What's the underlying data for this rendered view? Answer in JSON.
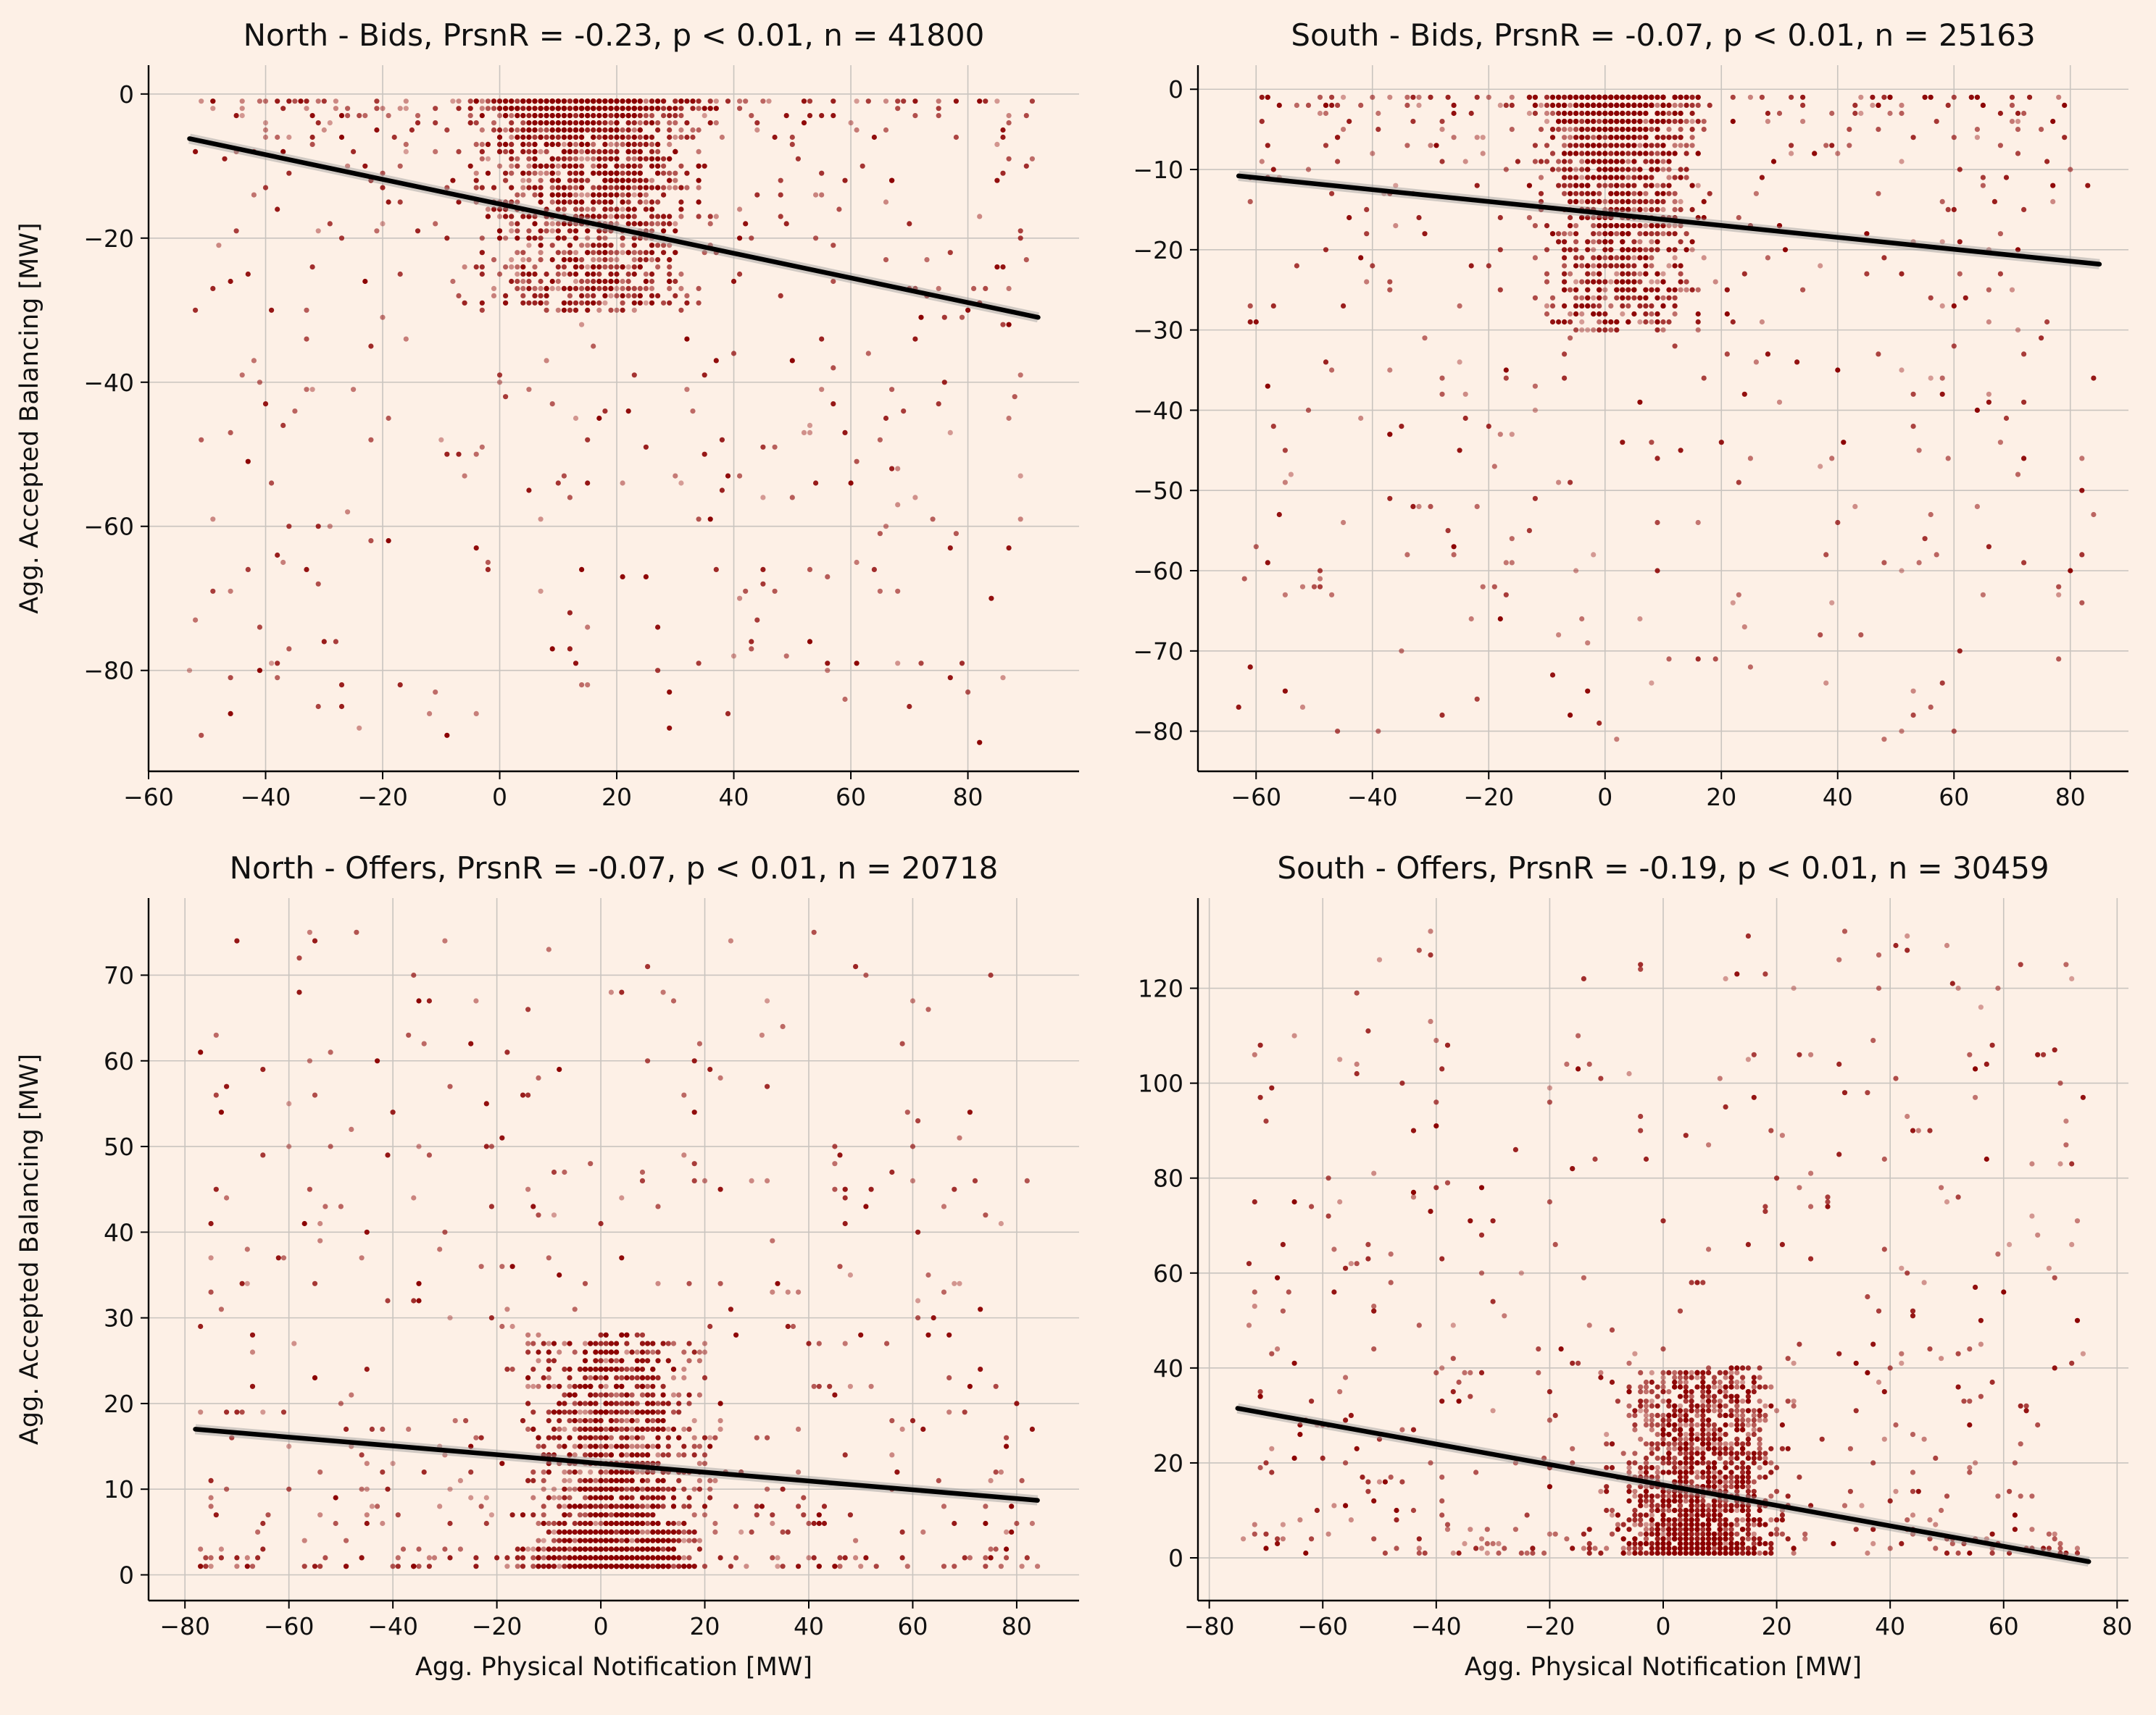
{
  "figure": {
    "background": "#fdf0e6",
    "point_color": "#8b0000",
    "line_color": "#000000",
    "grid": true
  },
  "chart_data": [
    {
      "id": "north-bids",
      "type": "scatter",
      "title": "North - Bids, PrsnR = -0.23, p < 0.01, n = 41800",
      "xlabel": "",
      "ylabel": "Agg. Accepted Balancing [MW]",
      "xlim": [
        -60,
        99
      ],
      "ylim": [
        -94,
        4
      ],
      "xticks": [
        -60,
        -40,
        -20,
        0,
        20,
        40,
        60,
        80
      ],
      "yticks": [
        -80,
        -60,
        -40,
        -20,
        0
      ],
      "regression": {
        "x": [
          -53,
          92
        ],
        "y": [
          -6.2,
          -31
        ]
      },
      "scatter_summary": {
        "cluster": {
          "x": [
            -10,
            40
          ],
          "y": [
            -30,
            -1
          ]
        },
        "spread": {
          "x": [
            -53,
            91
          ],
          "y": [
            -90,
            -1
          ]
        }
      },
      "seed": 11
    },
    {
      "id": "south-bids",
      "type": "scatter",
      "title": "South - Bids, PrsnR = -0.07, p < 0.01, n = 25163",
      "xlabel": "",
      "ylabel": "",
      "xlim": [
        -70,
        90
      ],
      "ylim": [
        -85,
        3
      ],
      "xticks": [
        -60,
        -40,
        -20,
        0,
        20,
        40,
        60,
        80
      ],
      "yticks": [
        -80,
        -70,
        -60,
        -50,
        -40,
        -30,
        -20,
        -10,
        0
      ],
      "regression": {
        "x": [
          -63,
          85
        ],
        "y": [
          -10.8,
          -21.8
        ]
      },
      "scatter_summary": {
        "cluster": {
          "x": [
            -15,
            20
          ],
          "y": [
            -30,
            -1
          ]
        },
        "spread": {
          "x": [
            -63,
            84
          ],
          "y": [
            -81,
            -1
          ]
        }
      },
      "seed": 23
    },
    {
      "id": "north-offers",
      "type": "scatter",
      "title": "North - Offers, PrsnR = -0.07, p < 0.01, n = 20718",
      "xlabel": "Agg. Physical Notification [MW]",
      "ylabel": "Agg. Accepted Balancing [MW]",
      "xlim": [
        -87,
        92
      ],
      "ylim": [
        -3,
        79
      ],
      "xticks": [
        -80,
        -60,
        -40,
        -20,
        0,
        20,
        40,
        60,
        80
      ],
      "yticks": [
        0,
        10,
        20,
        30,
        40,
        50,
        60,
        70
      ],
      "regression": {
        "x": [
          -78,
          84
        ],
        "y": [
          17.0,
          8.7
        ]
      },
      "scatter_summary": {
        "cluster": {
          "x": [
            -20,
            25
          ],
          "y": [
            1,
            28
          ]
        },
        "spread": {
          "x": [
            -78,
            84
          ],
          "y": [
            1,
            75
          ]
        }
      },
      "seed": 37
    },
    {
      "id": "south-offers",
      "type": "scatter",
      "title": "South - Offers, PrsnR = -0.19, p < 0.01, n = 30459",
      "xlabel": "Agg. Physical Notification [MW]",
      "ylabel": "",
      "xlim": [
        -82,
        82
      ],
      "ylim": [
        -9,
        139
      ],
      "xticks": [
        -80,
        -60,
        -40,
        -20,
        0,
        20,
        40,
        60,
        80
      ],
      "yticks": [
        0,
        20,
        40,
        60,
        80,
        100,
        120
      ],
      "regression": {
        "x": [
          -75,
          75
        ],
        "y": [
          31.5,
          -0.8
        ]
      },
      "scatter_summary": {
        "cluster": {
          "x": [
            -12,
            25
          ],
          "y": [
            1,
            40
          ]
        },
        "spread": {
          "x": [
            -75,
            75
          ],
          "y": [
            1,
            132
          ]
        }
      },
      "seed": 53
    }
  ]
}
